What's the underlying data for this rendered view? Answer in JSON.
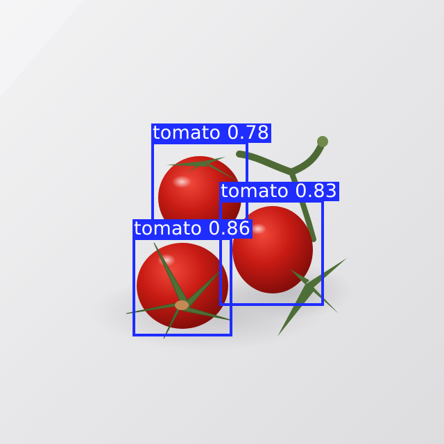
{
  "detections": [
    {
      "class_label": "tomato",
      "confidence": "0.78"
    },
    {
      "class_label": "tomato",
      "confidence": "0.83"
    },
    {
      "class_label": "tomato",
      "confidence": "0.86"
    }
  ],
  "colors": {
    "box": "#1f2dff",
    "label_text": "#ffffff",
    "background": "#e9e9eb",
    "tomato_red": "#c41a14",
    "stem_green": "#4d6a35"
  }
}
